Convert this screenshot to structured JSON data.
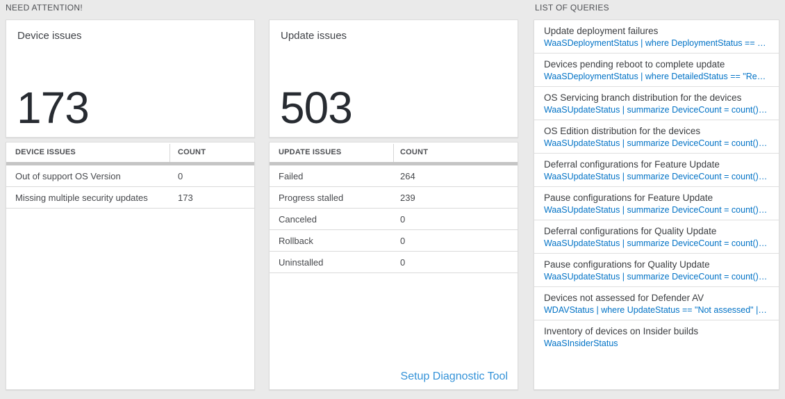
{
  "sections": {
    "need_attention_label": "NEED ATTENTION!",
    "list_of_queries_label": "LIST OF QUERIES"
  },
  "device_card": {
    "title": "Device issues",
    "count": "173",
    "table": {
      "headers": [
        "DEVICE ISSUES",
        "COUNT"
      ],
      "rows": [
        {
          "label": "Out of support OS Version",
          "count": "0"
        },
        {
          "label": "Missing multiple security updates",
          "count": "173"
        }
      ]
    }
  },
  "update_card": {
    "title": "Update issues",
    "count": "503",
    "table": {
      "headers": [
        "UPDATE ISSUES",
        "COUNT"
      ],
      "rows": [
        {
          "label": "Failed",
          "count": "264"
        },
        {
          "label": "Progress stalled",
          "count": "239"
        },
        {
          "label": "Canceled",
          "count": "0"
        },
        {
          "label": "Rollback",
          "count": "0"
        },
        {
          "label": "Uninstalled",
          "count": "0"
        }
      ]
    },
    "footer_link": "Setup Diagnostic Tool"
  },
  "queries": {
    "items": [
      {
        "title": "Update deployment failures",
        "query": "WaaSDeploymentStatus | where DeploymentStatus == \"Failed\" |..."
      },
      {
        "title": "Devices pending reboot to complete update",
        "query": "WaaSDeploymentStatus | where DetailedStatus == \"Reboot pend..."
      },
      {
        "title": "OS Servicing branch distribution for the devices",
        "query": "WaaSUpdateStatus | summarize DeviceCount = count() by OSSer..."
      },
      {
        "title": "OS Edition distribution for the devices",
        "query": "WaaSUpdateStatus | summarize DeviceCount = count() by OSEdit..."
      },
      {
        "title": "Deferral configurations for Feature Update",
        "query": "WaaSUpdateStatus | summarize DeviceCount = count() by Featur..."
      },
      {
        "title": "Pause configurations for Feature Update",
        "query": "WaaSUpdateStatus | summarize DeviceCount = count() by Featur..."
      },
      {
        "title": "Deferral configurations for Quality Update",
        "query": "WaaSUpdateStatus | summarize DeviceCount = count() by Qualit..."
      },
      {
        "title": "Pause configurations for Quality Update",
        "query": "WaaSUpdateStatus | summarize DeviceCount = count() by Qualit..."
      },
      {
        "title": "Devices not assessed for Defender AV",
        "query": "WDAVStatus | where UpdateStatus == \"Not assessed\" | render ta..."
      },
      {
        "title": "Inventory of devices on Insider builds",
        "query": "WaaSInsiderStatus"
      }
    ]
  },
  "colors": {
    "query_link_blue": "#0072c6",
    "footer_link_blue": "#3392d8",
    "number_text": "#272b31",
    "page_background": "#eaeaea"
  }
}
